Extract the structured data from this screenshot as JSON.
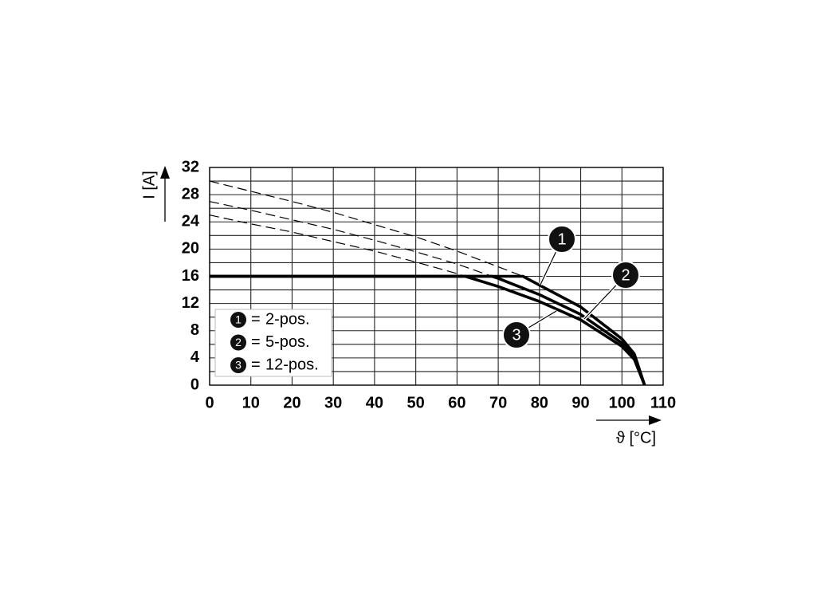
{
  "chart_data": {
    "type": "line",
    "x_label": "ϑ [°C]",
    "y_label": "I [A]",
    "xlim": [
      0,
      110
    ],
    "xticks": [
      0,
      10,
      20,
      30,
      40,
      50,
      60,
      70,
      80,
      90,
      100,
      110
    ],
    "ylim": [
      0,
      32
    ],
    "yticks": [
      0,
      4,
      8,
      12,
      16,
      20,
      24,
      28,
      32
    ],
    "y_minor_ticks": [
      2,
      6,
      10,
      14,
      18,
      22,
      26,
      30
    ],
    "grid": true,
    "legend": "lower left",
    "legend_separator": "=",
    "series": [
      {
        "label": "1",
        "name": "2-pos.",
        "color": "#000000",
        "x": [
          0,
          76,
          80,
          90,
          100,
          103,
          105.5
        ],
        "values": [
          16,
          16,
          14.7,
          11.5,
          6.8,
          4.6,
          0
        ],
        "dashed_x": [
          0,
          10,
          20,
          30,
          40,
          50,
          60,
          70,
          76
        ],
        "dashed_values": [
          30,
          28.5,
          27.0,
          25.4,
          23.6,
          21.8,
          19.7,
          17.4,
          16
        ]
      },
      {
        "label": "2",
        "name": "5-pos.",
        "color": "#000000",
        "x": [
          0,
          68.5,
          70,
          80,
          90,
          100,
          103,
          105.5
        ],
        "values": [
          16,
          16,
          15.7,
          13.3,
          10.4,
          6.2,
          4.2,
          0
        ],
        "dashed_x": [
          0,
          10,
          20,
          30,
          40,
          50,
          60,
          68.5
        ],
        "dashed_values": [
          27.0,
          25.7,
          24.3,
          22.9,
          21.3,
          19.6,
          17.8,
          16
        ]
      },
      {
        "label": "3",
        "name": "12-pos.",
        "color": "#000000",
        "x": [
          0,
          62,
          70,
          80,
          90,
          100,
          103,
          105.5
        ],
        "values": [
          16,
          16,
          14.5,
          12.3,
          9.6,
          5.7,
          3.8,
          0
        ],
        "dashed_x": [
          0,
          10,
          20,
          30,
          40,
          50,
          60,
          62
        ],
        "dashed_values": [
          25.0,
          23.7,
          22.5,
          21.1,
          19.7,
          18.1,
          16.4,
          16
        ]
      }
    ]
  }
}
